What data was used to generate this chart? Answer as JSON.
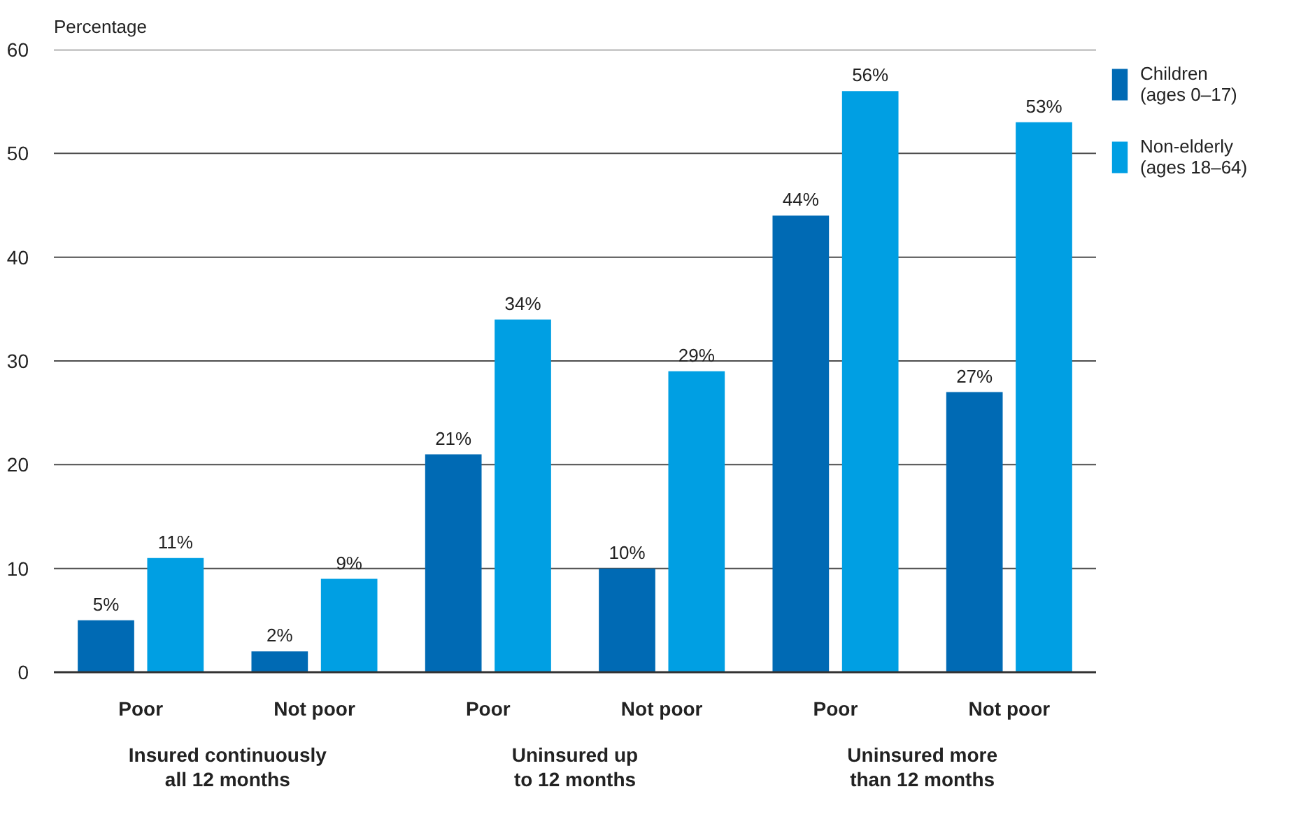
{
  "chart_data": {
    "type": "bar",
    "ylabel": "Percentage",
    "categories": [
      "Poor",
      "Not poor",
      "Poor",
      "Not poor",
      "Poor",
      "Not poor"
    ],
    "series": [
      {
        "name": "Children (ages 0–17)",
        "color": "#006ab4",
        "values": [
          5,
          2,
          21,
          10,
          44,
          27
        ],
        "value_labels": [
          "5%",
          "2%",
          "21%",
          "10%",
          "44%",
          "27%"
        ]
      },
      {
        "name": "Non-elderly (ages 18–64)",
        "color": "#009fe3",
        "values": [
          11,
          9,
          34,
          29,
          56,
          53
        ],
        "value_labels": [
          "11%",
          "9%",
          "34%",
          "29%",
          "56%",
          "53%"
        ]
      }
    ],
    "ylim": [
      0,
      60
    ],
    "yticks": [
      0,
      10,
      20,
      30,
      40,
      50,
      60
    ],
    "grid": "y",
    "legend": "top right",
    "annotations": [
      "Insured continuously all 12 months",
      "Uninsured up to 12 months",
      "Uninsured more than 12 months"
    ]
  }
}
